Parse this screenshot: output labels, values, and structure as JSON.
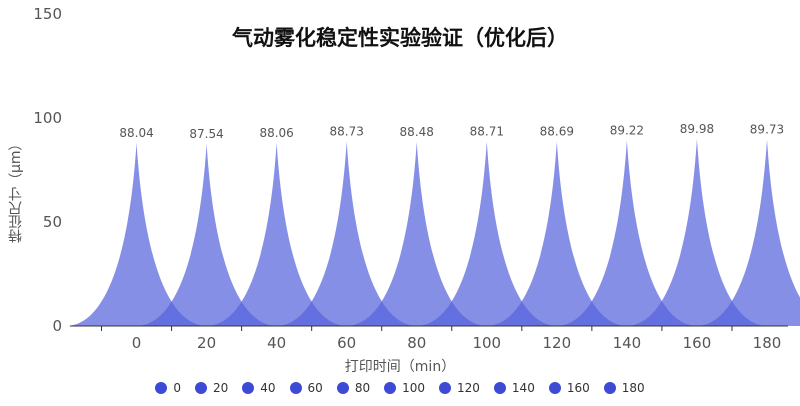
{
  "chart_data": {
    "type": "area",
    "title": "气动雾化稳定性实验验证（优化后）",
    "xlabel": "打印时间（min）",
    "ylabel": "特征尺寸（μm）",
    "categories": [
      "0",
      "20",
      "40",
      "60",
      "80",
      "100",
      "120",
      "140",
      "160",
      "180"
    ],
    "values": [
      88.04,
      87.54,
      88.06,
      88.73,
      88.48,
      88.71,
      88.69,
      89.22,
      89.98,
      89.73
    ],
    "value_labels": [
      "88.04",
      "87.54",
      "88.06",
      "88.73",
      "88.48",
      "88.71",
      "88.69",
      "89.22",
      "89.98",
      "89.73"
    ],
    "ylim": [
      0,
      150
    ],
    "yticks": [
      "0",
      "50",
      "100",
      "150"
    ],
    "grid": false,
    "legend_position": "bottom",
    "legend": [
      "0",
      "20",
      "40",
      "60",
      "80",
      "100",
      "120",
      "140",
      "160",
      "180"
    ],
    "colors": {
      "series": "#5864dc",
      "legend_dot": "#3d4ad6",
      "axis": "#333333",
      "label": "#555555"
    }
  }
}
